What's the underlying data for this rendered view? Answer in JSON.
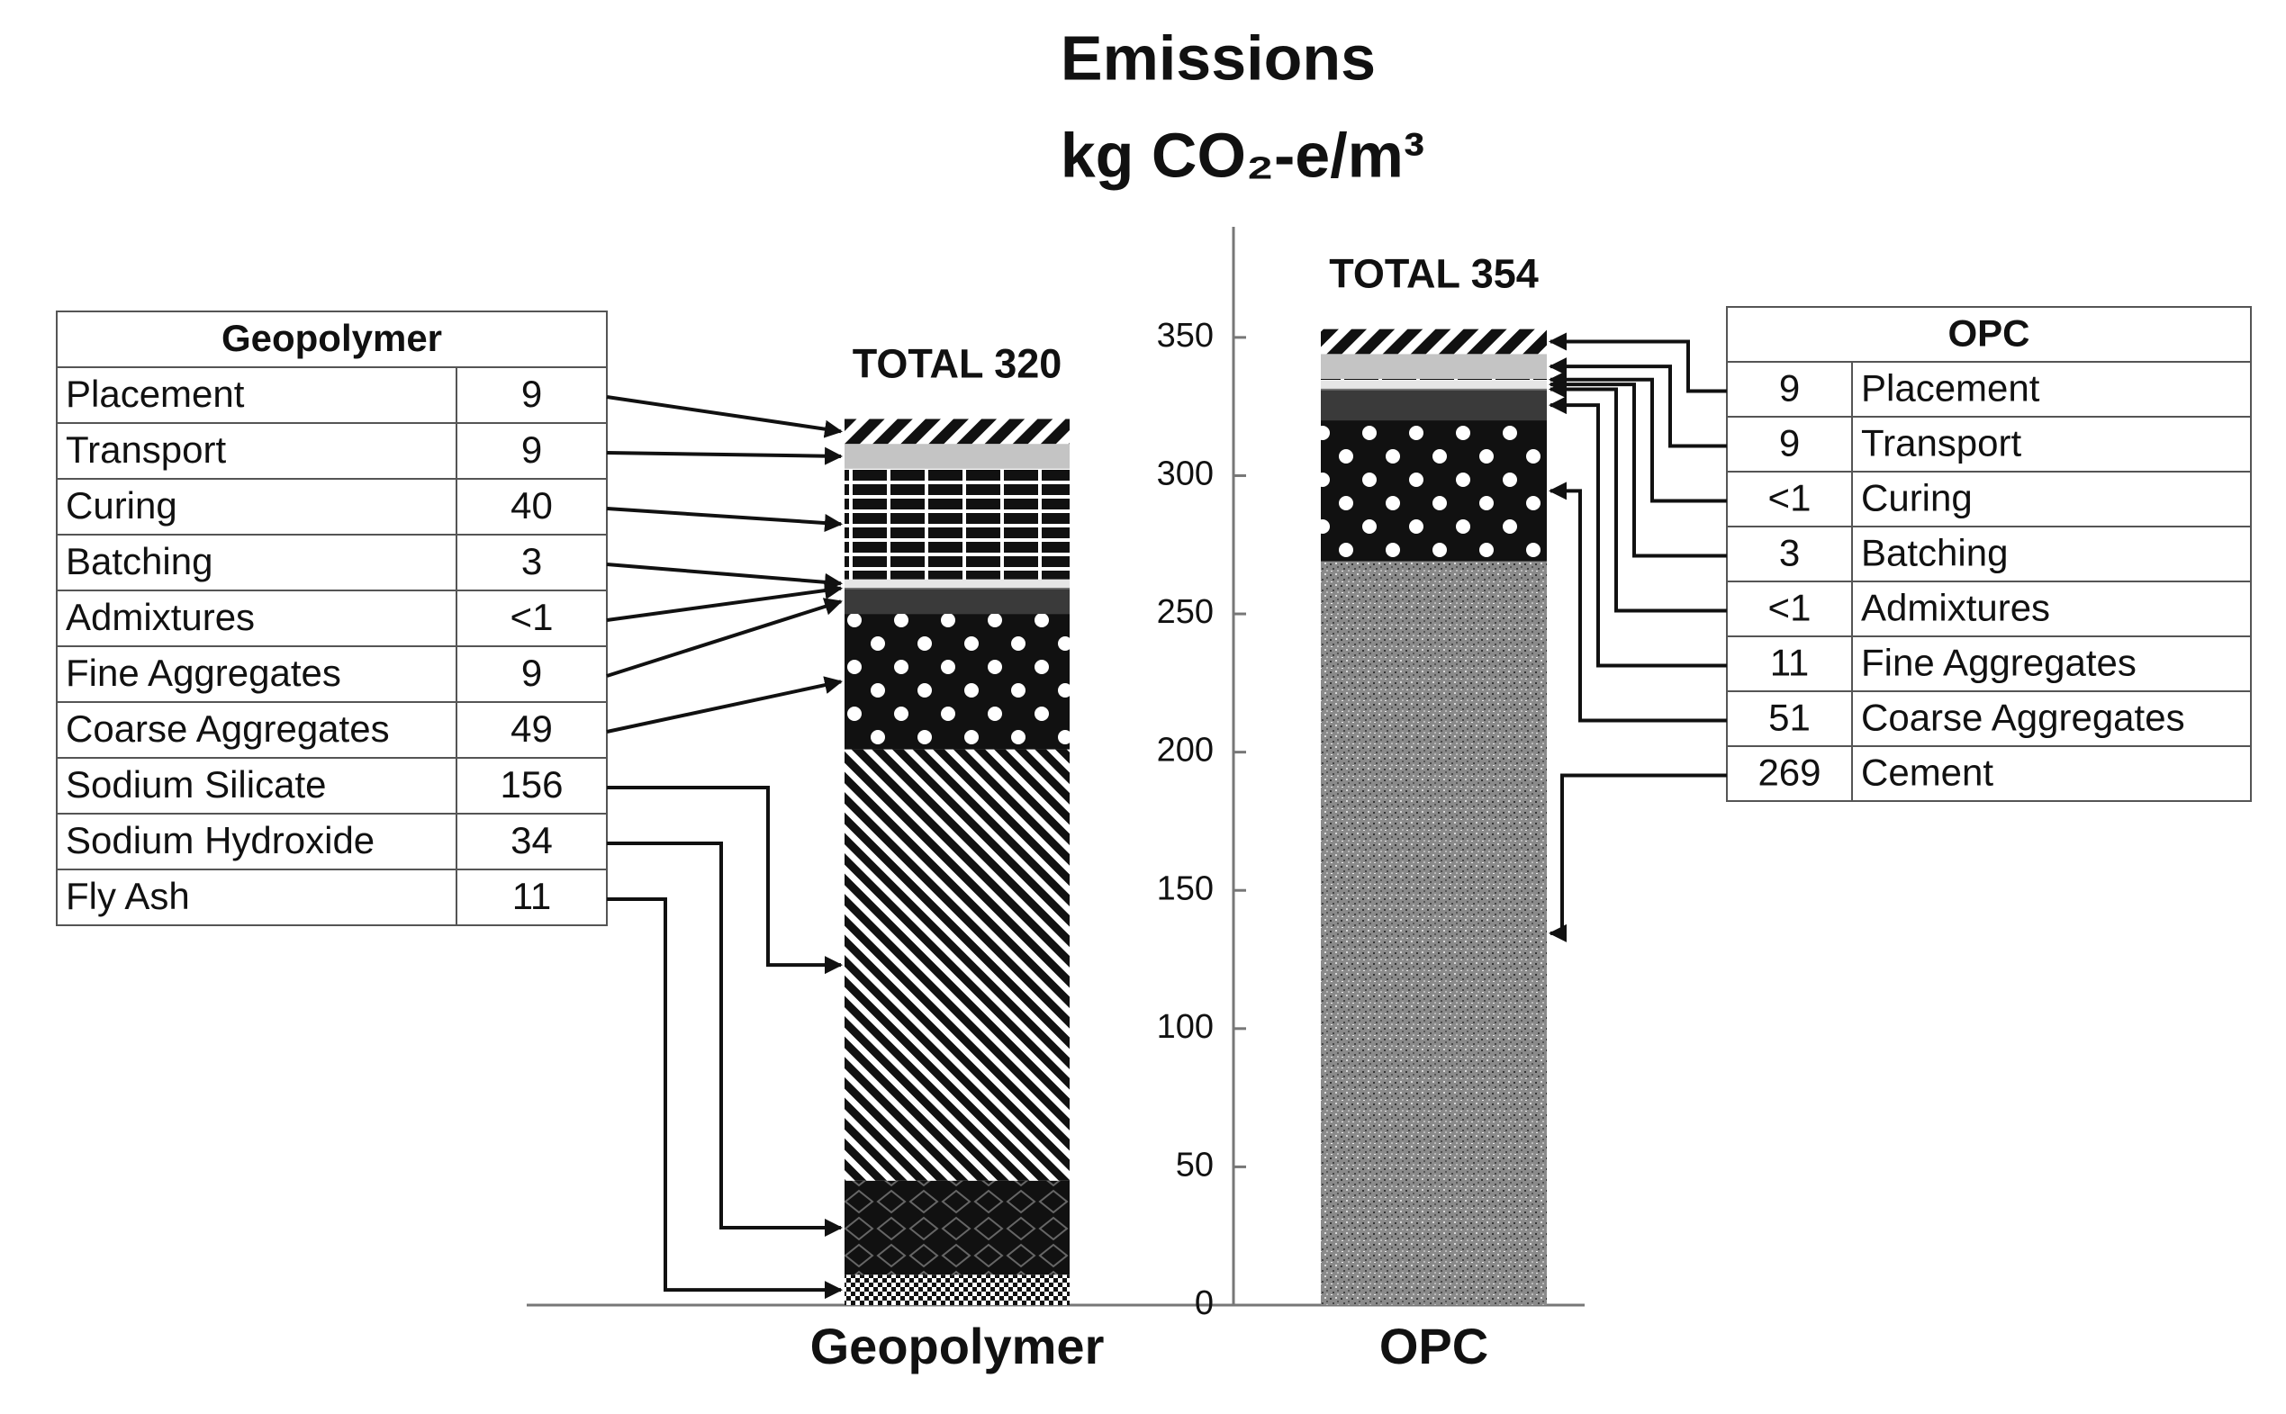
{
  "chart_data": {
    "type": "stacked-bar",
    "title": "Emissions",
    "subtitle": "kg CO₂-e/m³",
    "categories": [
      "Geopolymer",
      "OPC"
    ],
    "total_labels": [
      "TOTAL 320",
      "TOTAL 354"
    ],
    "ylim": [
      0,
      390
    ],
    "yticks": [
      0,
      50,
      100,
      150,
      200,
      250,
      300,
      350
    ],
    "series": [
      {
        "name": "Placement",
        "pattern": "pat-stripes",
        "values": [
          9,
          9
        ],
        "value_labels": [
          "9",
          "9"
        ]
      },
      {
        "name": "Transport",
        "pattern": "pat-lightgray",
        "values": [
          9,
          9
        ],
        "value_labels": [
          "9",
          "9"
        ]
      },
      {
        "name": "Curing",
        "pattern": "pat-grid",
        "values": [
          40,
          0.5
        ],
        "value_labels": [
          "40",
          "<1"
        ]
      },
      {
        "name": "Batching",
        "pattern": "pat-pale",
        "values": [
          3,
          3
        ],
        "value_labels": [
          "3",
          "3"
        ]
      },
      {
        "name": "Admixtures",
        "pattern": "pat-mid",
        "values": [
          0.5,
          0.5
        ],
        "value_labels": [
          "<1",
          "<1"
        ]
      },
      {
        "name": "Fine Aggregates",
        "pattern": "pat-dark",
        "values": [
          9,
          11
        ],
        "value_labels": [
          "9",
          "11"
        ]
      },
      {
        "name": "Coarse Aggregates",
        "pattern": "pat-dots",
        "values": [
          49,
          51
        ],
        "value_labels": [
          "49",
          "51"
        ]
      },
      {
        "name": "Sodium Silicate",
        "pattern": "pat-thin",
        "values": [
          156,
          null
        ],
        "value_labels": [
          "156",
          null
        ]
      },
      {
        "name": "Sodium Hydroxide",
        "pattern": "pat-diamond",
        "values": [
          34,
          null
        ],
        "value_labels": [
          "34",
          null
        ]
      },
      {
        "name": "Fly Ash",
        "pattern": "pat-checker",
        "values": [
          11,
          null
        ],
        "value_labels": [
          "11",
          null
        ]
      },
      {
        "name": "Cement",
        "pattern": "pat-speckle",
        "values": [
          null,
          269
        ],
        "value_labels": [
          null,
          "269"
        ]
      }
    ]
  }
}
